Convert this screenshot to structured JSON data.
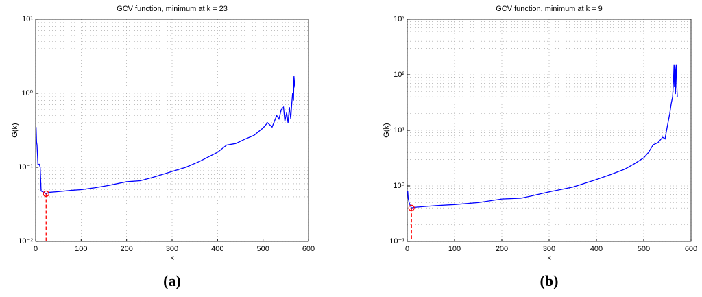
{
  "chart_data": [
    {
      "type": "line",
      "title": "GCV function, minimum at k = 23",
      "xlabel": "k",
      "ylabel": "G(k)",
      "panel_label": "(a)",
      "log_y": true,
      "grid": true,
      "color": "#0000ff",
      "marker_color": "#ff0000",
      "xlim": [
        0,
        600
      ],
      "xticks": [
        0,
        100,
        200,
        300,
        400,
        500,
        600
      ],
      "ylim": [
        0.01,
        10
      ],
      "yticks": [
        {
          "value": 0.01,
          "label": "10⁻²"
        },
        {
          "value": 0.1,
          "label": "10⁻¹"
        },
        {
          "value": 1,
          "label": "10⁰"
        },
        {
          "value": 10,
          "label": "10¹"
        }
      ],
      "minimum": {
        "x": 23,
        "y": 0.044
      },
      "x": [
        1,
        2,
        3,
        5,
        8,
        10,
        12,
        15,
        20,
        23,
        30,
        50,
        80,
        100,
        130,
        160,
        200,
        230,
        260,
        300,
        330,
        360,
        400,
        420,
        440,
        460,
        480,
        500,
        510,
        520,
        530,
        535,
        540,
        545,
        548,
        552,
        555,
        558,
        561,
        563,
        565,
        567,
        568,
        570
      ],
      "values": [
        0.35,
        0.22,
        0.2,
        0.11,
        0.11,
        0.1,
        0.048,
        0.047,
        0.045,
        0.044,
        0.046,
        0.047,
        0.049,
        0.05,
        0.053,
        0.057,
        0.064,
        0.066,
        0.074,
        0.088,
        0.1,
        0.12,
        0.16,
        0.2,
        0.21,
        0.24,
        0.27,
        0.34,
        0.4,
        0.35,
        0.5,
        0.45,
        0.6,
        0.65,
        0.42,
        0.55,
        0.4,
        0.65,
        0.45,
        0.7,
        1.0,
        0.8,
        1.7,
        1.2
      ]
    },
    {
      "type": "line",
      "title": "GCV function, minimum at k = 9",
      "xlabel": "k",
      "ylabel": "G(k)",
      "panel_label": "(b)",
      "log_y": true,
      "grid": true,
      "color": "#0000ff",
      "marker_color": "#ff0000",
      "xlim": [
        0,
        600
      ],
      "xticks": [
        0,
        100,
        200,
        300,
        400,
        500,
        600
      ],
      "ylim": [
        0.1,
        1000
      ],
      "yticks": [
        {
          "value": 0.1,
          "label": "10⁻¹"
        },
        {
          "value": 1,
          "label": "10⁰"
        },
        {
          "value": 10,
          "label": "10¹"
        },
        {
          "value": 100,
          "label": "10²"
        },
        {
          "value": 1000,
          "label": "10³"
        }
      ],
      "minimum": {
        "x": 9,
        "y": 0.4
      },
      "x": [
        1,
        2,
        4,
        6,
        9,
        15,
        30,
        60,
        100,
        150,
        200,
        240,
        260,
        300,
        350,
        400,
        430,
        460,
        480,
        500,
        510,
        520,
        530,
        540,
        545,
        550,
        555,
        558,
        561,
        563,
        564,
        565,
        566,
        567,
        568,
        569,
        570,
        571
      ],
      "values": [
        0.8,
        0.6,
        0.5,
        0.45,
        0.4,
        0.41,
        0.42,
        0.44,
        0.46,
        0.5,
        0.58,
        0.6,
        0.65,
        0.78,
        0.95,
        1.3,
        1.6,
        2.0,
        2.5,
        3.2,
        4.0,
        5.5,
        6.0,
        7.5,
        7.0,
        12,
        20,
        30,
        40,
        80,
        150,
        60,
        150,
        45,
        120,
        150,
        60,
        40
      ]
    }
  ]
}
